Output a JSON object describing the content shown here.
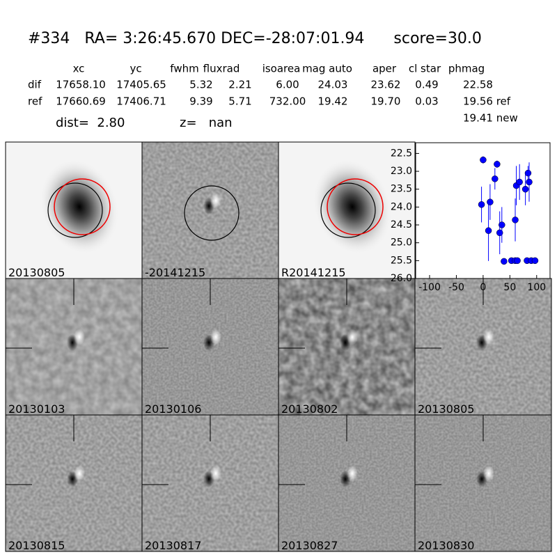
{
  "header": {
    "title": "#334   RA= 3:26:45.670 DEC=-28:07:01.94      score=30.0",
    "table": {
      "columns": [
        "xc",
        "yc",
        "fwhm",
        "fluxrad",
        "isoarea",
        "mag auto",
        "aper",
        "cl star",
        "phmag"
      ],
      "rows": [
        [
          "dif",
          "17658.10",
          "17405.65",
          "5.32",
          "2.21",
          "6.00",
          "24.03",
          "23.62",
          "0.49",
          "22.58"
        ],
        [
          "ref",
          "17660.69",
          "17406.71",
          "9.39",
          "5.71",
          "732.00",
          "19.42",
          "19.70",
          "0.03",
          "19.56 ref"
        ]
      ],
      "extra": "19.41 new"
    },
    "dist": "dist=  2.80",
    "z": "z=   nan"
  },
  "panels": [
    {
      "label": "20130805",
      "color": "#000000"
    },
    {
      "label": "-20141215",
      "color": "#000000"
    },
    {
      "label": "R20141215",
      "color": "#000000"
    },
    {
      "label": "20130103",
      "color": "#000000"
    },
    {
      "label": "20130106",
      "color": "#000000"
    },
    {
      "label": "20130802",
      "color": "#000000"
    },
    {
      "label": "20130805",
      "color": "#ff0000"
    },
    {
      "label": "20130815",
      "color": "#000000"
    },
    {
      "label": "20130817",
      "color": "#000000"
    },
    {
      "label": "20130827",
      "color": "#000000"
    },
    {
      "label": "20130830",
      "color": "#000000"
    }
  ],
  "chart_data": {
    "type": "scatter",
    "color": "#0000ff",
    "x": [
      -3,
      0,
      10,
      13,
      22,
      26,
      31,
      35,
      39,
      53,
      60,
      60,
      64,
      62,
      68,
      79,
      84,
      86,
      82,
      90,
      97
    ],
    "values": [
      23.93,
      22.68,
      24.66,
      23.86,
      23.21,
      22.8,
      24.72,
      24.5,
      25.52,
      25.5,
      25.5,
      24.36,
      25.5,
      23.4,
      23.3,
      23.5,
      23.05,
      23.3,
      25.5,
      25.5,
      25.5
    ],
    "errors": [
      0.5,
      0.1,
      0.85,
      0.5,
      0.3,
      0.1,
      0.6,
      0.5,
      null,
      null,
      null,
      0.6,
      null,
      0.55,
      0.5,
      0.45,
      0.2,
      0.55,
      null,
      null,
      null
    ],
    "xlim": [
      -126,
      125
    ],
    "ylim": [
      26.0,
      22.2
    ],
    "xticks": [
      -100,
      -50,
      0,
      50,
      100
    ],
    "yticks": [
      22.5,
      {
        "value": 23.0,
        "label": "23.0"
      },
      23.5,
      {
        "value": 24.0,
        "label": "24.0"
      },
      24.5,
      {
        "value": 25.0,
        "label": "25.0"
      },
      25.5,
      {
        "value": 26.0,
        "label": "26.0"
      }
    ]
  }
}
